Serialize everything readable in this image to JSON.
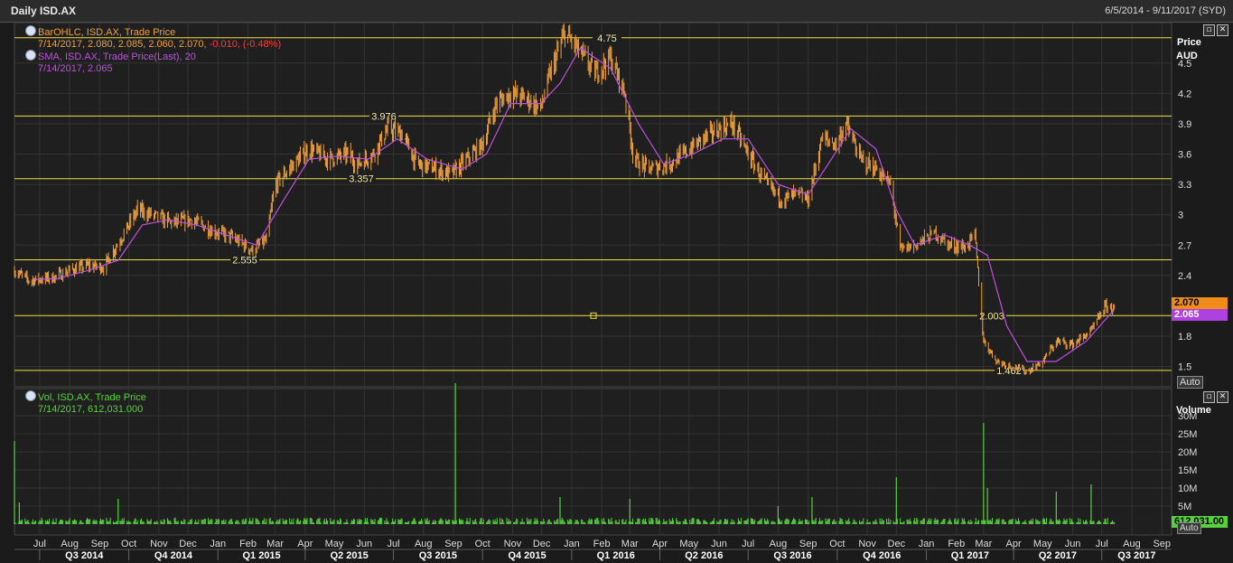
{
  "window": {
    "title": "Daily ISD.AX",
    "date_range": "6/5/2014 - 9/11/2017 (SYD)"
  },
  "price_panel": {
    "legend_ohlc": {
      "label": "BarOHLC, ISD.AX, Trade Price",
      "values": "7/14/2017, 2.080, 2.085, 2.060, 2.070,",
      "change": "-0.010, (-0.48%)"
    },
    "legend_sma": {
      "label": "SMA, ISD.AX, Trade Price(Last),  20",
      "values": "7/14/2017, 2.065"
    },
    "axis_title": "Price",
    "axis_unit": "AUD",
    "last_price_badge": "2.070",
    "sma_badge": "2.065",
    "auto_label": "Auto"
  },
  "volume_panel": {
    "legend": {
      "label": "Vol, ISD.AX, Trade Price",
      "values": "7/14/2017, 612,031.000"
    },
    "axis_title": "Volume",
    "last_volume_badge": "612,031.00",
    "auto_label": "Auto"
  },
  "colors": {
    "background": "#1b1b1b",
    "price_bars": "#f0a040",
    "sma_line": "#c050e0",
    "volume_bars": "#58d040",
    "level_lines": "#f0e040",
    "grid": "#333333"
  },
  "icons": {
    "restore": "restore-icon",
    "close": "close-icon",
    "legend": "settings-circle-icon"
  },
  "chart_data": [
    {
      "type": "line",
      "title": "Daily ISD.AX",
      "ylabel": "Price AUD",
      "ylim": [
        1.3,
        4.9
      ],
      "y_ticks": [
        "4.5",
        "4.2",
        "3.9",
        "3.6",
        "3.3",
        "3",
        "2.7",
        "2.4",
        "1.8",
        "1.5"
      ],
      "x_months": [
        "Jul",
        "Aug",
        "Sep",
        "Oct",
        "Nov",
        "Dec",
        "Jan",
        "Feb",
        "Mar",
        "Apr",
        "May",
        "Jun",
        "Jul",
        "Aug",
        "Sep",
        "Oct",
        "Nov",
        "Dec",
        "Jan",
        "Feb",
        "Mar",
        "Apr",
        "May",
        "Jun",
        "Jul",
        "Aug",
        "Sep",
        "Oct",
        "Nov",
        "Dec",
        "Jan",
        "Feb",
        "Mar",
        "Apr",
        "May",
        "Jun",
        "Jul",
        "Aug",
        "Sep"
      ],
      "x_quarters": [
        "Q3 2014",
        "Q4 2014",
        "Q1 2015",
        "Q2 2015",
        "Q3 2015",
        "Q4 2015",
        "Q1 2016",
        "Q2 2016",
        "Q3 2016",
        "Q4 2016",
        "Q1 2017",
        "Q2 2017",
        "Q3 2017"
      ],
      "levels": [
        {
          "value": 4.75,
          "label": "4.75"
        },
        {
          "value": 3.976,
          "label": "3.976"
        },
        {
          "value": 3.357,
          "label": "3.357"
        },
        {
          "value": 2.555,
          "label": "2.555"
        },
        {
          "value": 2.003,
          "label": "2.003"
        },
        {
          "value": 1.462,
          "label": "1.462"
        }
      ],
      "series": [
        {
          "name": "BarOHLC, ISD.AX, Trade Price",
          "points": [
            [
              "2014-06-05",
              2.45
            ],
            [
              "2014-06-20",
              2.35
            ],
            [
              "2014-07-15",
              2.38
            ],
            [
              "2014-08-01",
              2.45
            ],
            [
              "2014-08-20",
              2.5
            ],
            [
              "2014-09-05",
              2.48
            ],
            [
              "2014-09-25",
              2.8
            ],
            [
              "2014-10-10",
              3.05
            ],
            [
              "2014-10-25",
              3.0
            ],
            [
              "2014-11-15",
              2.92
            ],
            [
              "2014-12-05",
              2.95
            ],
            [
              "2014-12-25",
              2.85
            ],
            [
              "2015-01-15",
              2.78
            ],
            [
              "2015-02-05",
              2.65
            ],
            [
              "2015-02-20",
              2.75
            ],
            [
              "2015-03-01",
              3.3
            ],
            [
              "2015-03-20",
              3.5
            ],
            [
              "2015-04-05",
              3.65
            ],
            [
              "2015-04-25",
              3.55
            ],
            [
              "2015-05-15",
              3.6
            ],
            [
              "2015-05-25",
              3.5
            ],
            [
              "2015-06-10",
              3.6
            ],
            [
              "2015-06-25",
              3.85
            ],
            [
              "2015-07-10",
              3.8
            ],
            [
              "2015-07-25",
              3.5
            ],
            [
              "2015-08-15",
              3.45
            ],
            [
              "2015-08-30",
              3.4
            ],
            [
              "2015-09-15",
              3.55
            ],
            [
              "2015-10-01",
              3.7
            ],
            [
              "2015-10-15",
              4.1
            ],
            [
              "2015-10-30",
              4.2
            ],
            [
              "2015-11-15",
              4.15
            ],
            [
              "2015-11-30",
              4.05
            ],
            [
              "2015-12-10",
              4.4
            ],
            [
              "2015-12-25",
              4.8
            ],
            [
              "2016-01-10",
              4.6
            ],
            [
              "2016-01-25",
              4.4
            ],
            [
              "2016-02-10",
              4.55
            ],
            [
              "2016-02-25",
              4.2
            ],
            [
              "2016-03-05",
              3.55
            ],
            [
              "2016-03-20",
              3.45
            ],
            [
              "2016-04-10",
              3.5
            ],
            [
              "2016-04-25",
              3.6
            ],
            [
              "2016-05-15",
              3.75
            ],
            [
              "2016-06-01",
              3.85
            ],
            [
              "2016-06-15",
              3.9
            ],
            [
              "2016-07-01",
              3.6
            ],
            [
              "2016-07-20",
              3.3
            ],
            [
              "2016-08-05",
              3.15
            ],
            [
              "2016-08-20",
              3.2
            ],
            [
              "2016-09-01",
              3.15
            ],
            [
              "2016-09-15",
              3.75
            ],
            [
              "2016-09-30",
              3.7
            ],
            [
              "2016-10-10",
              3.9
            ],
            [
              "2016-10-25",
              3.55
            ],
            [
              "2016-11-10",
              3.45
            ],
            [
              "2016-11-25",
              3.3
            ],
            [
              "2016-12-05",
              2.65
            ],
            [
              "2016-12-20",
              2.7
            ],
            [
              "2017-01-10",
              2.82
            ],
            [
              "2017-01-25",
              2.7
            ],
            [
              "2017-02-10",
              2.68
            ],
            [
              "2017-02-20",
              2.8
            ],
            [
              "2017-03-01",
              1.75
            ],
            [
              "2017-03-15",
              1.55
            ],
            [
              "2017-04-01",
              1.5
            ],
            [
              "2017-04-15",
              1.45
            ],
            [
              "2017-05-01",
              1.55
            ],
            [
              "2017-05-15",
              1.75
            ],
            [
              "2017-06-01",
              1.72
            ],
            [
              "2017-06-20",
              1.85
            ],
            [
              "2017-07-05",
              2.1
            ],
            [
              "2017-07-14",
              2.07
            ]
          ]
        },
        {
          "name": "SMA, ISD.AX, Trade Price(Last),  20",
          "points": [
            [
              "2014-06-25",
              2.36
            ],
            [
              "2014-07-20",
              2.37
            ],
            [
              "2014-08-20",
              2.45
            ],
            [
              "2014-09-20",
              2.55
            ],
            [
              "2014-10-15",
              2.9
            ],
            [
              "2014-11-10",
              2.95
            ],
            [
              "2014-12-10",
              2.9
            ],
            [
              "2015-01-10",
              2.8
            ],
            [
              "2015-02-10",
              2.7
            ],
            [
              "2015-03-10",
              3.15
            ],
            [
              "2015-04-05",
              3.55
            ],
            [
              "2015-05-05",
              3.58
            ],
            [
              "2015-06-05",
              3.55
            ],
            [
              "2015-07-05",
              3.75
            ],
            [
              "2015-08-05",
              3.55
            ],
            [
              "2015-09-10",
              3.45
            ],
            [
              "2015-10-05",
              3.6
            ],
            [
              "2015-10-30",
              4.1
            ],
            [
              "2015-11-30",
              4.1
            ],
            [
              "2015-12-20",
              4.3
            ],
            [
              "2016-01-10",
              4.65
            ],
            [
              "2016-02-10",
              4.45
            ],
            [
              "2016-03-10",
              3.9
            ],
            [
              "2016-04-05",
              3.5
            ],
            [
              "2016-05-05",
              3.6
            ],
            [
              "2016-06-05",
              3.75
            ],
            [
              "2016-07-01",
              3.75
            ],
            [
              "2016-08-01",
              3.3
            ],
            [
              "2016-09-01",
              3.2
            ],
            [
              "2016-09-25",
              3.55
            ],
            [
              "2016-10-15",
              3.85
            ],
            [
              "2016-11-10",
              3.65
            ],
            [
              "2016-12-01",
              3.05
            ],
            [
              "2016-12-20",
              2.7
            ],
            [
              "2017-01-20",
              2.8
            ],
            [
              "2017-02-15",
              2.7
            ],
            [
              "2017-03-05",
              2.6
            ],
            [
              "2017-03-25",
              1.9
            ],
            [
              "2017-04-15",
              1.55
            ],
            [
              "2017-05-15",
              1.55
            ],
            [
              "2017-06-15",
              1.75
            ],
            [
              "2017-07-14",
              2.065
            ]
          ]
        }
      ]
    },
    {
      "type": "bar",
      "title": "Vol, ISD.AX, Trade Price",
      "ylabel": "Volume",
      "ylim": [
        0,
        35000000
      ],
      "y_ticks": [
        "30M",
        "25M",
        "20M",
        "15M",
        "10M",
        "5M"
      ],
      "baseline": 1000000,
      "spikes": [
        [
          "2014-06-05",
          23000000
        ],
        [
          "2014-06-10",
          6000000
        ],
        [
          "2014-09-20",
          7000000
        ],
        [
          "2015-09-03",
          39000000
        ],
        [
          "2015-12-20",
          7500000
        ],
        [
          "2016-03-01",
          7000000
        ],
        [
          "2016-09-05",
          7500000
        ],
        [
          "2016-08-01",
          5000000
        ],
        [
          "2016-12-01",
          13000000
        ],
        [
          "2017-03-01",
          28000000
        ],
        [
          "2017-03-05",
          10000000
        ],
        [
          "2017-05-15",
          9000000
        ],
        [
          "2017-06-20",
          11000000
        ]
      ]
    }
  ]
}
